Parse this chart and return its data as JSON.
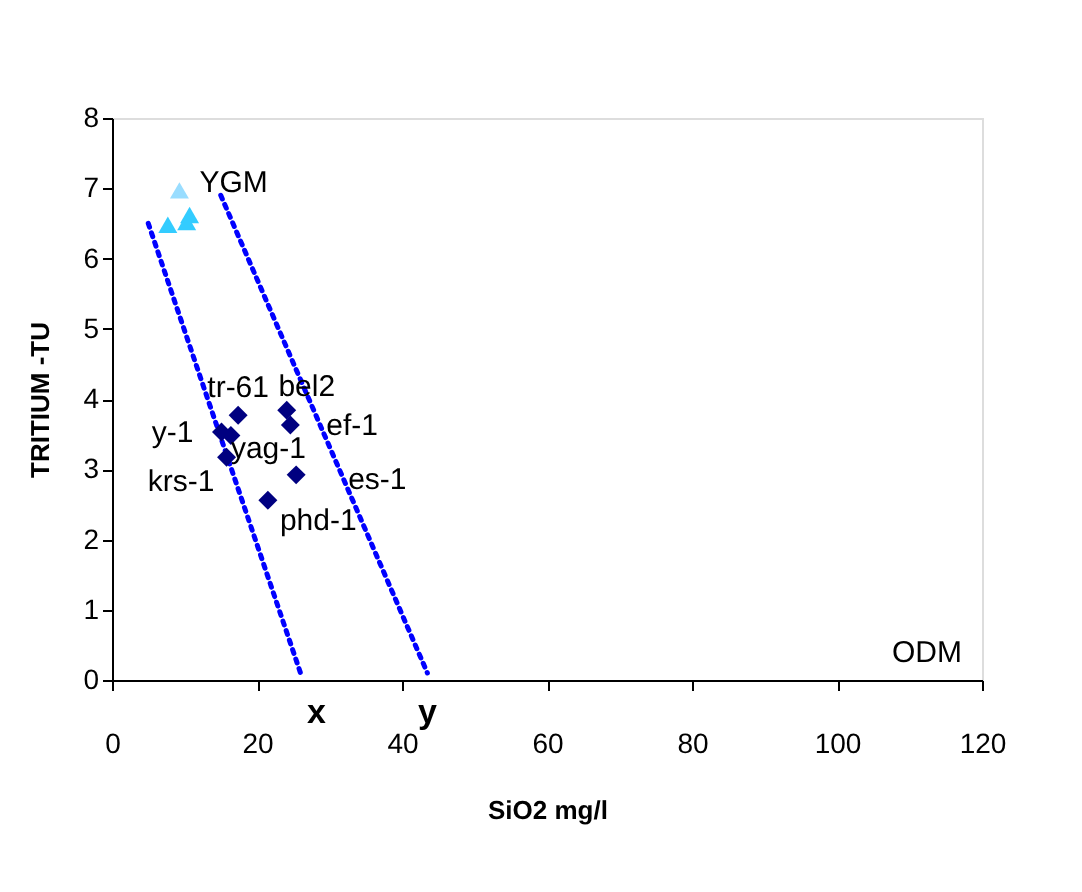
{
  "chart_data": {
    "type": "scatter",
    "xlabel": "SiO2 mg/l",
    "ylabel": "TRITIUM -TU",
    "xlim": [
      0,
      120
    ],
    "xticks": [
      0,
      20,
      40,
      60,
      80,
      100,
      120
    ],
    "ylim": [
      0,
      8
    ],
    "yticks": [
      0,
      1,
      2,
      3,
      4,
      5,
      6,
      7,
      8
    ],
    "grid": false,
    "series": [
      {
        "marker": "diamond",
        "color": "#000080",
        "x": [
          15.1,
          16.4,
          17.4,
          15.8,
          24.1,
          24.6,
          25.4,
          21.5
        ],
        "values": [
          3.53,
          3.48,
          3.77,
          3.17,
          3.84,
          3.63,
          2.92,
          2.56
        ]
      },
      {
        "marker": "triangle",
        "colors": [
          "#99ddff",
          "#33ccff",
          "#33ccff",
          "#33ccff"
        ],
        "x": [
          9.3,
          7.7,
          10.7,
          10.3
        ],
        "values": [
          6.97,
          6.48,
          6.62,
          6.52
        ]
      },
      {
        "type": "line",
        "line_style": "dotted",
        "marker": "none",
        "color": "#0000ff",
        "x": [
          5,
          26
        ],
        "values": [
          6.5,
          0.1
        ]
      },
      {
        "type": "line",
        "line_style": "dotted",
        "marker": "none",
        "color": "#0000ff",
        "x": [
          15,
          43.5
        ],
        "values": [
          6.9,
          0.1
        ]
      }
    ],
    "annotations": [
      {
        "text": "y-1",
        "x": 15.1,
        "y": 3.53
      },
      {
        "text": "yag-1",
        "x": 16.4,
        "y": 3.48
      },
      {
        "text": "tr-61",
        "x": 17.4,
        "y": 3.77
      },
      {
        "text": "krs-1",
        "x": 15.8,
        "y": 3.17
      },
      {
        "text": "bel2",
        "x": 24.1,
        "y": 3.84
      },
      {
        "text": "ef-1",
        "x": 24.6,
        "y": 3.63
      },
      {
        "text": "es-1",
        "x": 25.4,
        "y": 2.92
      },
      {
        "text": "phd-1",
        "x": 21.5,
        "y": 2.56
      },
      {
        "text": "YGM",
        "x": 9.3,
        "y": 6.97
      },
      {
        "text": "x",
        "x": 26,
        "y": 0.1
      },
      {
        "text": "y",
        "x": 43.5,
        "y": 0.1
      },
      "ODM"
    ]
  }
}
